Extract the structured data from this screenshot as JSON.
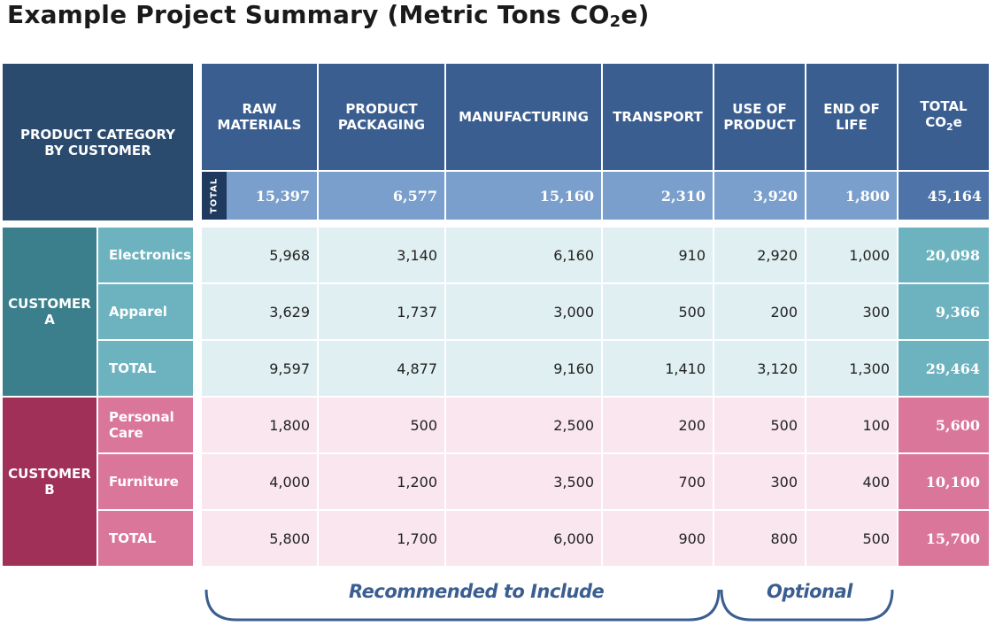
{
  "title": {
    "main": "Example Project Summary (Metric Tons CO",
    "sub": "2",
    "tail": "e)"
  },
  "corner_label": "PRODUCT CATEGORY\nBY CUSTOMER",
  "columns": [
    "RAW\nMATERIALS",
    "PRODUCT\nPACKAGING",
    "MANUFACTURING",
    "TRANSPORT",
    "USE OF\nPRODUCT",
    "END OF\nLIFE"
  ],
  "total_col": {
    "main": "TOTAL\nCO",
    "sub": "2",
    "tail": "e"
  },
  "total_row_label": "TOTAL",
  "total_row_values": [
    "15,397",
    "6,577",
    "15,160",
    "2,310",
    "3,920",
    "1,800"
  ],
  "grand_total": "45,164",
  "customer_a": {
    "label": "CUSTOMER\nA",
    "rows": [
      {
        "category": "Electronics",
        "values": [
          "5,968",
          "3,140",
          "6,160",
          "910",
          "2,920",
          "1,000"
        ],
        "total": "20,098"
      },
      {
        "category": "Apparel",
        "values": [
          "3,629",
          "1,737",
          "3,000",
          "500",
          "200",
          "300"
        ],
        "total": "9,366"
      },
      {
        "category": "TOTAL",
        "values": [
          "9,597",
          "4,877",
          "9,160",
          "1,410",
          "3,120",
          "1,300"
        ],
        "total": "29,464"
      }
    ]
  },
  "customer_b": {
    "label": "CUSTOMER\nB",
    "rows": [
      {
        "category": "Personal\nCare",
        "values": [
          "1,800",
          "500",
          "2,500",
          "200",
          "500",
          "100"
        ],
        "total": "5,600"
      },
      {
        "category": "Furniture",
        "values": [
          "4,000",
          "1,200",
          "3,500",
          "700",
          "300",
          "400"
        ],
        "total": "10,100"
      },
      {
        "category": "TOTAL",
        "values": [
          "5,800",
          "1,700",
          "6,000",
          "900",
          "800",
          "500"
        ],
        "total": "15,700"
      }
    ]
  },
  "braces": {
    "recommended": "Recommended to Include",
    "optional": "Optional"
  },
  "colors": {
    "header_blue": "#3b5e91",
    "customer_a": "#3a7f8b",
    "customer_b": "#a13058",
    "brace": "#3b5e91"
  }
}
